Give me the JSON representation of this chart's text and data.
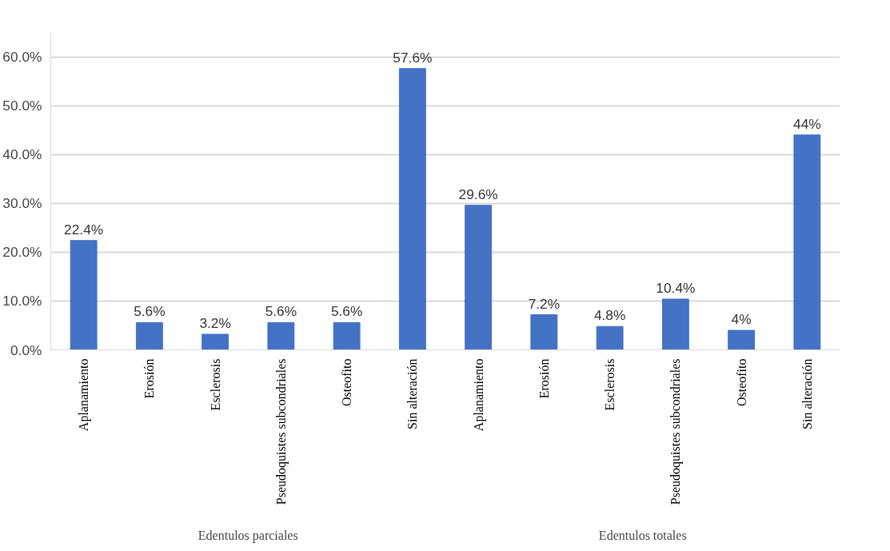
{
  "chart_data": {
    "type": "bar",
    "categories": [
      "Aplanamiento",
      "Erosión",
      "Esclerosis",
      "Pseudoquistes subcondriales",
      "Osteofito",
      "Sin alteración",
      "Aplanamiento",
      "Erosión",
      "Esclerosis",
      "Pseudoquistes subcondriales",
      "Osteofito",
      "Sin alteración"
    ],
    "values": [
      22.4,
      5.6,
      3.2,
      5.6,
      5.6,
      57.6,
      29.6,
      7.2,
      4.8,
      10.4,
      4,
      44
    ],
    "value_labels": [
      "22.4%",
      "5.6%",
      "3.2%",
      "5.6%",
      "5.6%",
      "57.6%",
      "29.6%",
      "7.2%",
      "4.8%",
      "10.4%",
      "4%",
      "44%"
    ],
    "color": "#4472c4",
    "ylim": [
      0,
      65
    ],
    "yticks": [
      {
        "value": 0,
        "label": "0.0%"
      },
      {
        "value": 10,
        "label": "10.0%"
      },
      {
        "value": 20,
        "label": "20.0%"
      },
      {
        "value": 30,
        "label": "30.0%"
      },
      {
        "value": 40,
        "label": "40.0%"
      },
      {
        "value": 50,
        "label": "50.0%"
      },
      {
        "value": 60,
        "label": "60.0%"
      }
    ],
    "grid": "y",
    "annotations": [
      "Edentulos parciales",
      "Edentulos totales"
    ]
  }
}
